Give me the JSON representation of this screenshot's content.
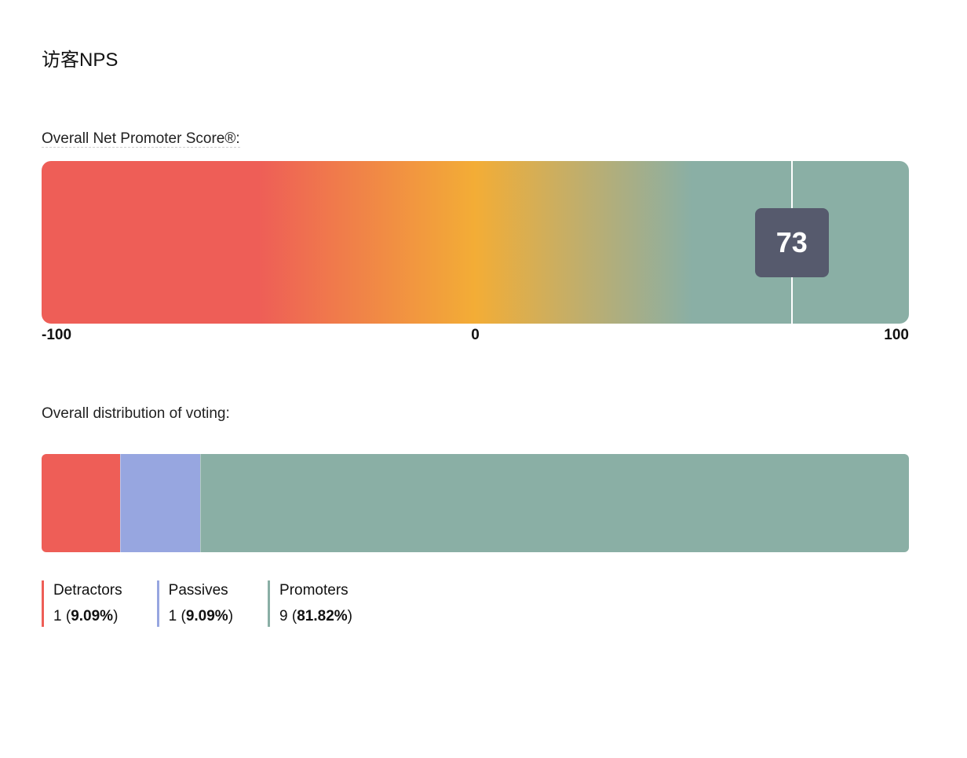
{
  "page": {
    "title": "访客NPS"
  },
  "nps_section": {
    "label": "Overall Net Promoter Score®:"
  },
  "distribution_section": {
    "label": "Overall distribution of voting:"
  },
  "colors": {
    "detractors": "#ee5e57",
    "passives": "#97a6e0",
    "promoters": "#8aafa5",
    "mid": "#f3ad36",
    "badge": "#565a6d"
  },
  "chart_data": [
    {
      "type": "gauge",
      "score": 73,
      "score_label": "73",
      "range": [
        -100,
        100
      ],
      "tick_labels": [
        "-100",
        "0",
        "100"
      ]
    },
    {
      "type": "bar",
      "stacked": true,
      "categories": [
        "Detractors",
        "Passives",
        "Promoters"
      ],
      "counts": [
        1,
        1,
        9
      ],
      "percent_labels": [
        "9.09%",
        "9.09%",
        "81.82%"
      ],
      "values": [
        9.09,
        9.09,
        81.82
      ]
    }
  ]
}
